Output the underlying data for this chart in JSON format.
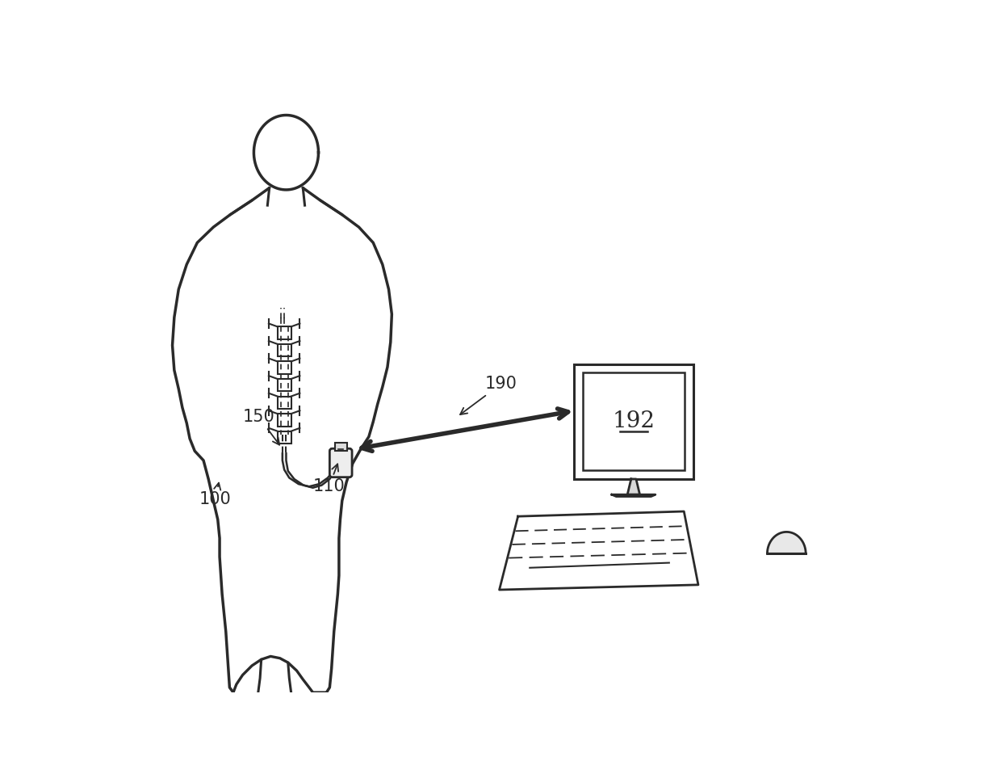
{
  "bg_color": "#ffffff",
  "line_color": "#2a2a2a",
  "lw": 2.2,
  "label_100": "100",
  "label_110": "110",
  "label_150": "150",
  "label_190": "190",
  "label_192": "192"
}
